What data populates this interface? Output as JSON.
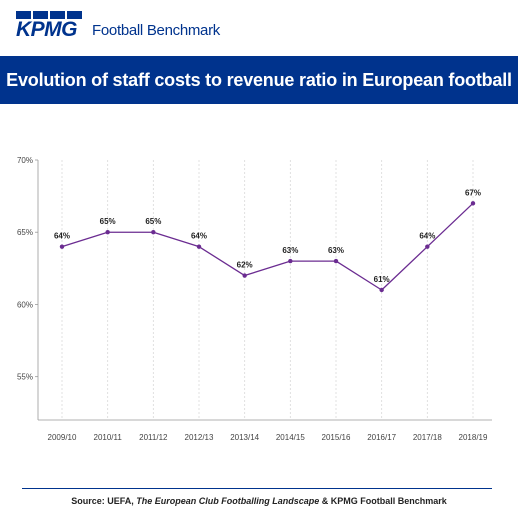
{
  "header": {
    "brand": "KPMG",
    "product": "Football Benchmark"
  },
  "colors": {
    "brand_blue": "#00338d",
    "line": "#6b2c91",
    "grid": "#d9d9d9"
  },
  "chart_data": {
    "type": "line",
    "title": "Evolution of staff costs to revenue ratio in European football",
    "xlabel": "",
    "ylabel": "",
    "categories": [
      "2009/10",
      "2010/11",
      "2011/12",
      "2012/13",
      "2013/14",
      "2014/15",
      "2015/16",
      "2016/17",
      "2017/18",
      "2018/19"
    ],
    "series": [
      {
        "values": [
          64,
          65,
          65,
          64,
          62,
          63,
          63,
          61,
          64,
          67
        ]
      }
    ],
    "data_labels": [
      "64%",
      "65%",
      "65%",
      "64%",
      "62%",
      "63%",
      "63%",
      "61%",
      "64%",
      "67%"
    ],
    "ylim": [
      52,
      70
    ],
    "yticks": [
      55,
      60,
      65,
      70
    ],
    "ytick_labels": [
      "55%",
      "60%",
      "65%",
      "70%"
    ],
    "grid": "vertical dotted",
    "legend": "none"
  },
  "source": {
    "prefix": "Source: UEFA, ",
    "publication": "The European Club Footballing Landscape",
    "suffix": " & KPMG Football Benchmark"
  }
}
